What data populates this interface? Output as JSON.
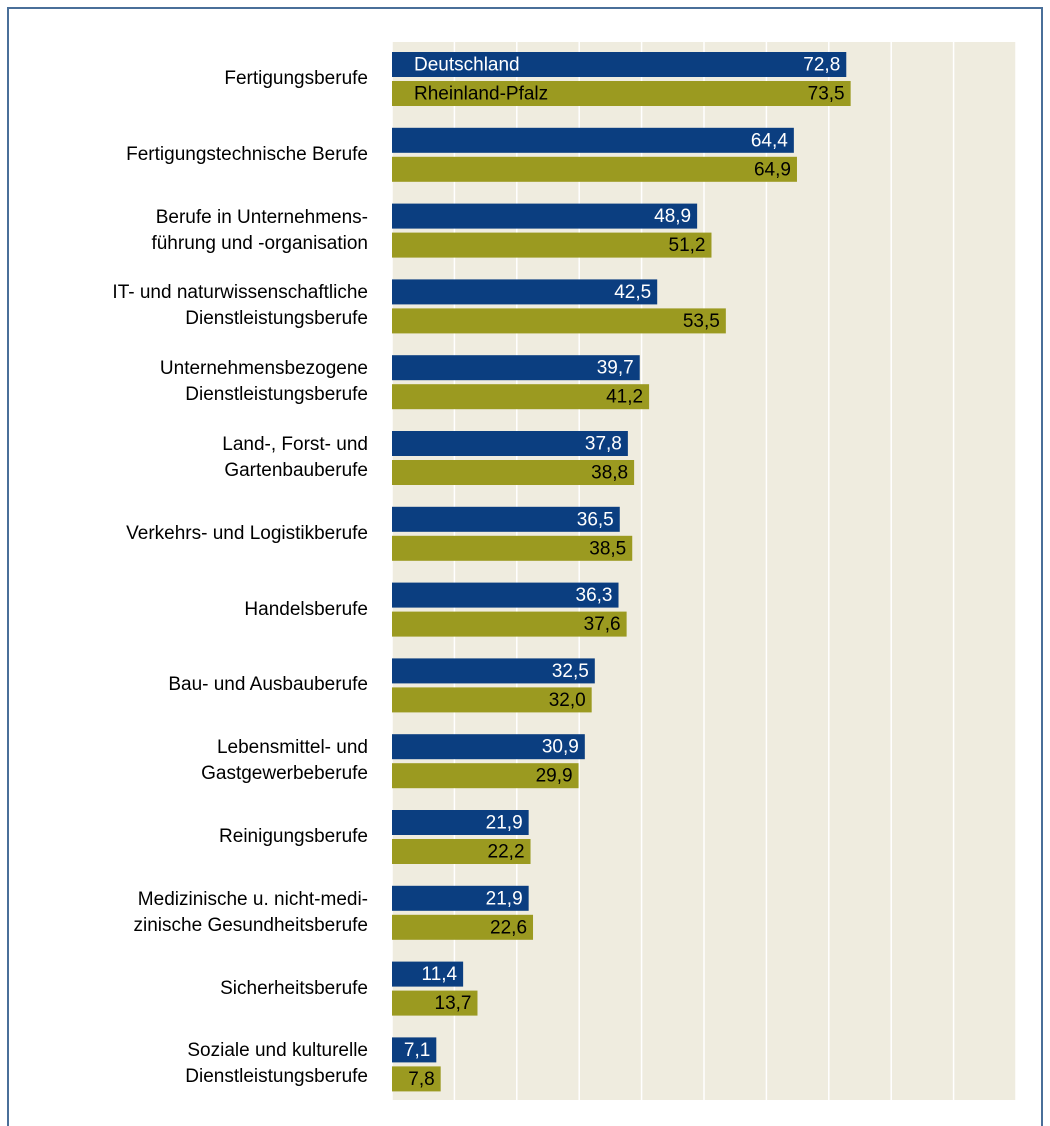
{
  "chart_data": {
    "type": "barh",
    "categories": [
      "Fertigungsberufe",
      "Fertigungstechnische Berufe",
      "Berufe in Unternehmens-\nführung und -organisation",
      "IT- und naturwissenschaftliche\nDienstleistungsberufe",
      "Unternehmensbezogene\nDienstleistungsberufe",
      "Land-, Forst- und\nGartenbauberufe",
      "Verkehrs- und Logistikberufe",
      "Handelsberufe",
      "Bau- und Ausbauberufe",
      "Lebensmittel- und\nGastgewerbeberufe",
      "Reinigungsberufe",
      "Medizinische u. nicht-medi-\nzinische Gesundheitsberufe",
      "Sicherheitsberufe",
      "Soziale und kulturelle\nDienstleistungsberufe"
    ],
    "series": [
      {
        "name": "Deutschland",
        "color": "#0b3e80",
        "values": [
          72.8,
          64.4,
          48.9,
          42.5,
          39.7,
          37.8,
          36.5,
          36.3,
          32.5,
          30.9,
          21.9,
          21.9,
          11.4,
          7.1
        ],
        "value_labels": [
          "72,8",
          "64,4",
          "48,9",
          "42,5",
          "39,7",
          "37,8",
          "36,5",
          "36,3",
          "32,5",
          "30,9",
          "21,9",
          "21,9",
          "11,4",
          "7,1"
        ]
      },
      {
        "name": "Rheinland-Pfalz",
        "color": "#9b9a20",
        "values": [
          73.5,
          64.9,
          51.2,
          53.5,
          41.2,
          38.8,
          38.5,
          37.6,
          32.0,
          29.9,
          22.2,
          22.6,
          13.7,
          7.8
        ],
        "value_labels": [
          "73,5",
          "64,9",
          "51,2",
          "53,5",
          "41,2",
          "38,8",
          "38,5",
          "37,6",
          "32,0",
          "29,9",
          "22,2",
          "22,6",
          "13,7",
          "7,8"
        ]
      }
    ],
    "xlim": [
      0,
      100
    ],
    "xticks": [
      0,
      10,
      20,
      30,
      40,
      50,
      60,
      70,
      80,
      90,
      100
    ],
    "grid": true
  }
}
